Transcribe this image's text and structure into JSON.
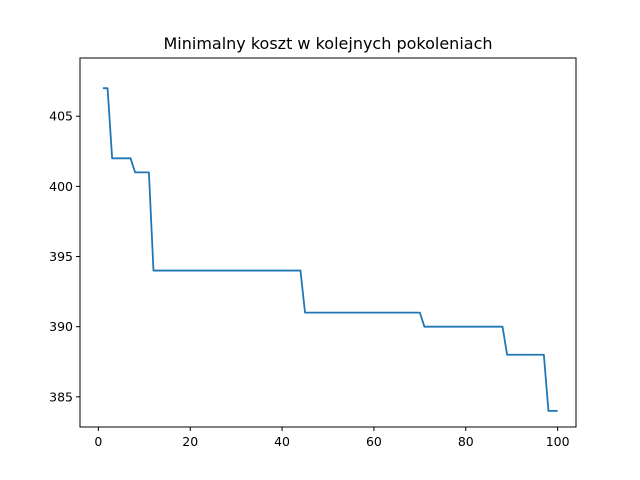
{
  "chart_data": {
    "type": "line",
    "title": "Minimalny koszt w kolejnych pokoleniach",
    "xlabel": "",
    "ylabel": "",
    "xlim": [
      -4,
      104
    ],
    "ylim": [
      382.85,
      409.15
    ],
    "xticks": [
      0,
      20,
      40,
      60,
      80,
      100
    ],
    "yticks": [
      385,
      390,
      395,
      400,
      405
    ],
    "grid": false,
    "color": "#1f77b4",
    "series": [
      {
        "points": [
          [
            1,
            407
          ],
          [
            2,
            407
          ],
          [
            3,
            402
          ],
          [
            7,
            402
          ],
          [
            8,
            401
          ],
          [
            11,
            401
          ],
          [
            12,
            394
          ],
          [
            44,
            394
          ],
          [
            45,
            391
          ],
          [
            70,
            391
          ],
          [
            71,
            390
          ],
          [
            88,
            390
          ],
          [
            89,
            388
          ],
          [
            97,
            388
          ],
          [
            98,
            384
          ],
          [
            100,
            384
          ]
        ]
      }
    ]
  }
}
